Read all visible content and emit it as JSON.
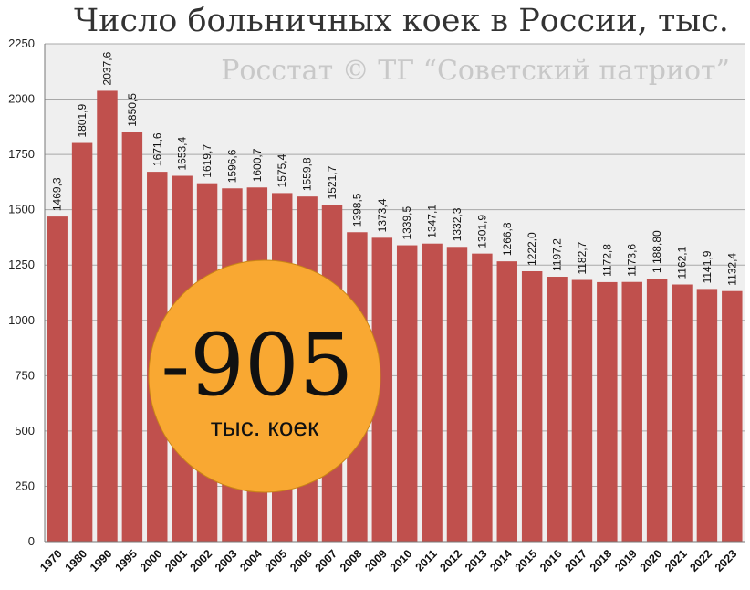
{
  "chart_data": {
    "type": "bar",
    "title": "Число больничных коек в России, тыс.",
    "watermark": "Росстат © ТГ “Советский патриот”",
    "categories": [
      "1970",
      "1980",
      "1990",
      "1995",
      "2000",
      "2001",
      "2002",
      "2003",
      "2004",
      "2005",
      "2006",
      "2007",
      "2008",
      "2009",
      "2010",
      "2011",
      "2012",
      "2013",
      "2014",
      "2015",
      "2016",
      "2017",
      "2018",
      "2019",
      "2020",
      "2021",
      "2022",
      "2023"
    ],
    "values": [
      1469.3,
      1801.9,
      2037.6,
      1850.5,
      1671.6,
      1653.4,
      1619.7,
      1596.6,
      1600.7,
      1575.4,
      1559.8,
      1521.7,
      1398.5,
      1373.4,
      1339.5,
      1347.1,
      1332.3,
      1301.9,
      1266.8,
      1222.0,
      1197.2,
      1182.7,
      1172.8,
      1173.6,
      1188.8,
      1162.1,
      1141.9,
      1132.4
    ],
    "value_labels": [
      "1469,3",
      "1801,9",
      "2037,6",
      "1850,5",
      "1671,6",
      "1653,4",
      "1619,7",
      "1596,6",
      "1600,7",
      "1575,4",
      "1559,8",
      "1521,7",
      "1398,5",
      "1373,4",
      "1339,5",
      "1347,1",
      "1332,3",
      "1301,9",
      "1266,8",
      "1222,0",
      "1197,2",
      "1182,7",
      "1172,8",
      "1173,6",
      "1 188,80",
      "1162,1",
      "1141,9",
      "1132,4"
    ],
    "y_ticks": [
      "0",
      "250",
      "500",
      "750",
      "1000",
      "1250",
      "1500",
      "1750",
      "2000",
      "2250"
    ],
    "ylim": [
      0,
      2250
    ],
    "grid": true,
    "bar_color": "#c0504d",
    "plot_background": "#efefef"
  },
  "badge": {
    "number": "-905",
    "unit": "тыс. коек",
    "color": "#f9a832"
  }
}
